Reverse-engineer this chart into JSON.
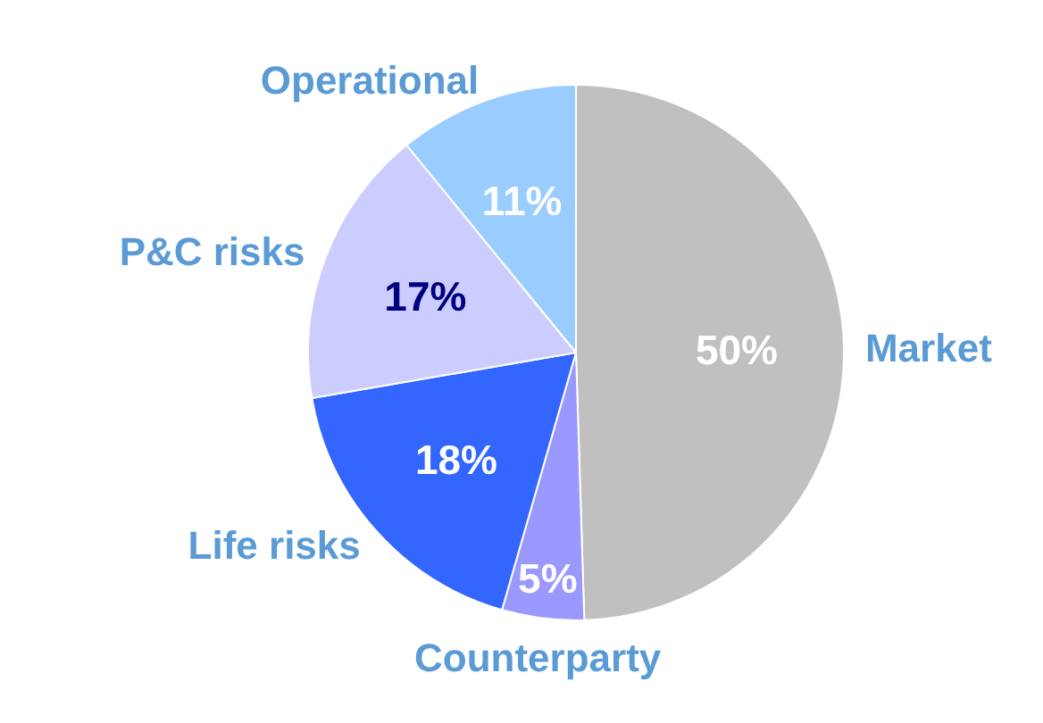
{
  "chart_data": {
    "type": "pie",
    "categories": [
      "Market",
      "Counterparty",
      "Life risks",
      "P&C risks",
      "Operational"
    ],
    "values": [
      50,
      5,
      18,
      17,
      11
    ],
    "colors": [
      "#c0c0c0",
      "#9999ff",
      "#3366ff",
      "#ccccff",
      "#99ccff"
    ],
    "value_labels": [
      "50%",
      "5%",
      "18%",
      "17%",
      "11%"
    ]
  }
}
